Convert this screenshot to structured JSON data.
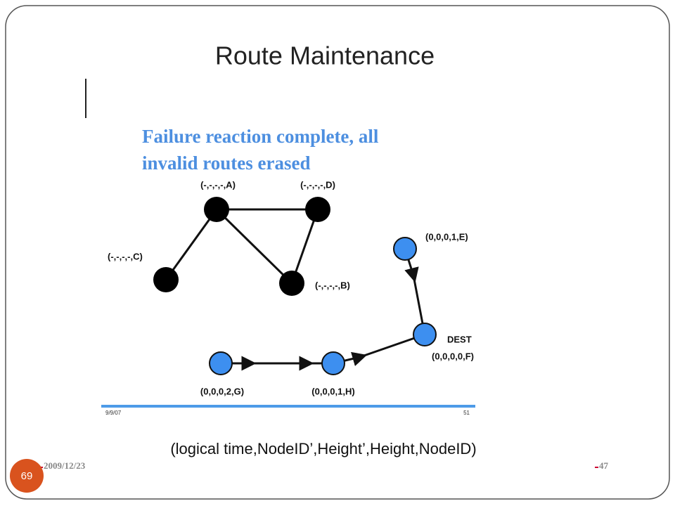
{
  "title": "Route Maintenance",
  "caption": {
    "lines": [
      "Failure reaction complete, all",
      "invalid routes erased"
    ]
  },
  "nodes": [
    {
      "label": "(-,-,-,-,A)"
    },
    {
      "label": "(-,-,-,-,D)"
    },
    {
      "label": "(-,-,-,-,C)"
    },
    {
      "label": "(-,-,-,-,B)"
    },
    {
      "label": "(0,0,0,1,E)"
    },
    {
      "label": "(0,0,0,0,F)",
      "tag": "DEST"
    },
    {
      "label": "(0,0,0,2,G)"
    },
    {
      "label": "(0,0,0,1,H)"
    }
  ],
  "inner_footer": {
    "left": "9/9/07",
    "right": "51"
  },
  "legend": "(logical time,NodeID’,Height’,Height,NodeID)",
  "footer": {
    "date": "2009/12/23",
    "page": "47"
  },
  "slide_number": "69"
}
